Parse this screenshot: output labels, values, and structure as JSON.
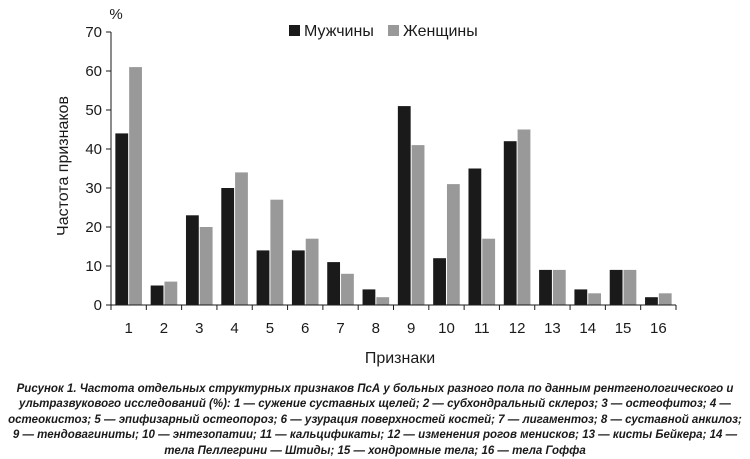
{
  "chart_data": {
    "type": "bar",
    "categories": [
      "1",
      "2",
      "3",
      "4",
      "5",
      "6",
      "7",
      "8",
      "9",
      "10",
      "11",
      "12",
      "13",
      "14",
      "15",
      "16"
    ],
    "series": [
      {
        "name": "Мужчины",
        "color": "#1a1a1a",
        "values": [
          44,
          5,
          23,
          30,
          14,
          14,
          11,
          4,
          51,
          12,
          35,
          42,
          9,
          4,
          9,
          2
        ]
      },
      {
        "name": "Женщины",
        "color": "#999999",
        "values": [
          61,
          6,
          20,
          34,
          27,
          17,
          8,
          2,
          41,
          31,
          17,
          45,
          9,
          3,
          9,
          3
        ]
      }
    ],
    "xlabel": "Признаки",
    "ylabel": "Частота признаков",
    "yunit": "%",
    "ylim": [
      0,
      70
    ],
    "yticks": [
      0,
      10,
      20,
      30,
      40,
      50,
      60,
      70
    ],
    "grid": false,
    "legend": "top-center"
  },
  "caption": "Рисунок 1. Частота отдельных структурных признаков ПсА у больных разного пола по данным рентгенологического и ультразвукового исследований (%): 1 — сужение суставных щелей; 2 — субхондральный склероз; 3 — остеофитоз; 4 — остеокистоз; 5 — эпифизарный остеопороз; 6 — узурация поверхностей костей; 7 — лигаментоз; 8 — суставной анкилоз; 9 — тендовагиниты; 10 — энтезопатии; 11 — кальцификаты; 12 — изменения рогов менисков; 13 — кисты Бейкера; 14 — тела Пеллегрини — Штиды; 15 — хондромные тела; 16 — тела Гоффа"
}
